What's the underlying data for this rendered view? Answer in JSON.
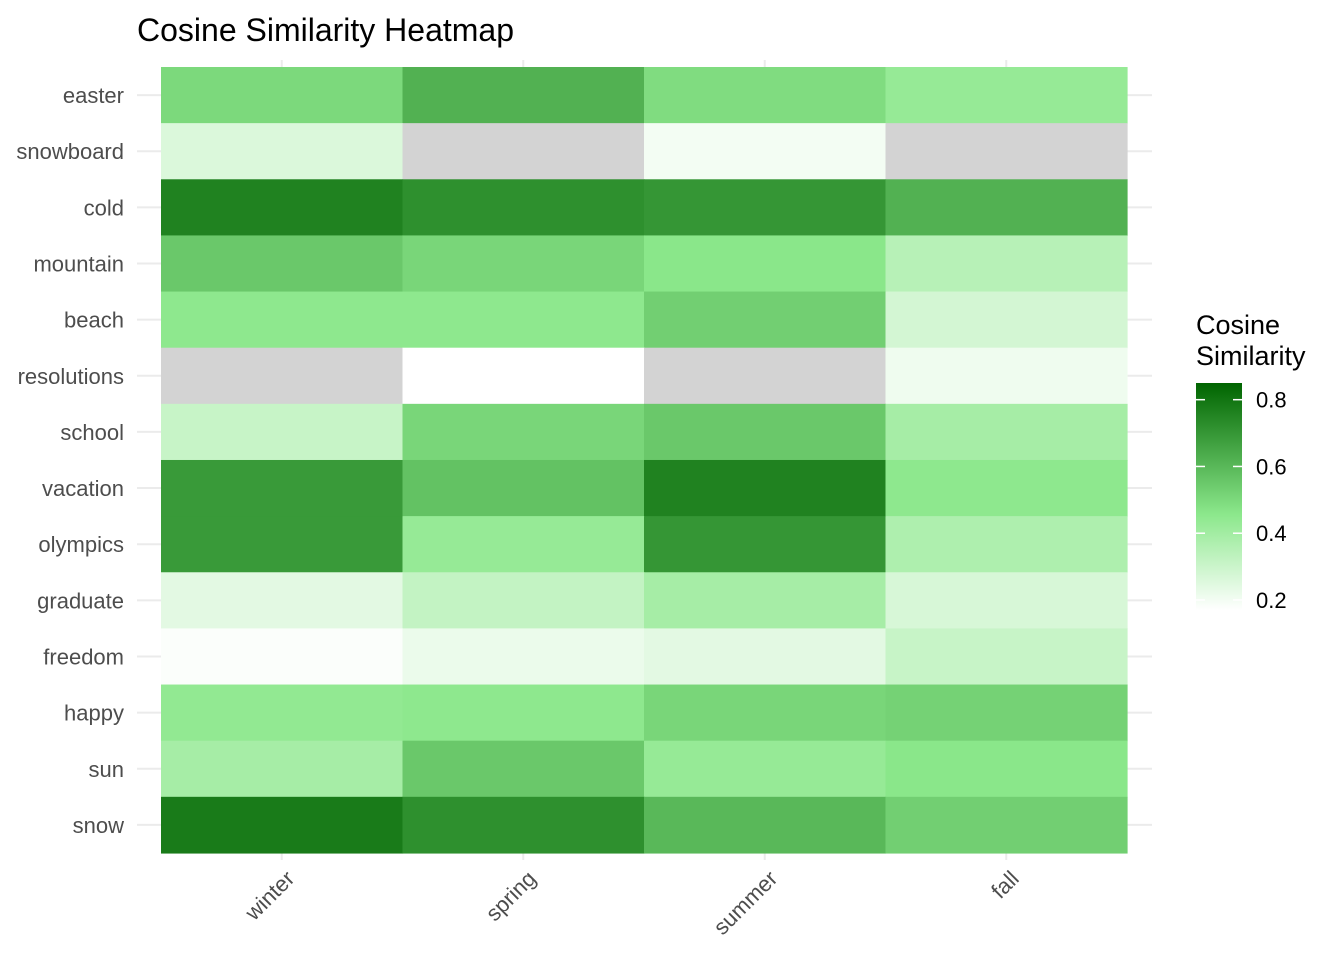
{
  "chart_data": {
    "type": "heatmap",
    "title": "Cosine Similarity Heatmap",
    "xlabel": "",
    "ylabel": "",
    "x_categories": [
      "winter",
      "spring",
      "summer",
      "fall"
    ],
    "y_categories": [
      "easter",
      "snowboard",
      "cold",
      "mountain",
      "beach",
      "resolutions",
      "school",
      "vacation",
      "olympics",
      "graduate",
      "freedom",
      "happy",
      "sun",
      "snow"
    ],
    "values": [
      [
        0.5,
        0.62,
        0.49,
        0.43
      ],
      [
        0.26,
        null,
        0.2,
        null
      ],
      [
        0.76,
        0.72,
        0.7,
        0.62
      ],
      [
        0.55,
        0.51,
        0.46,
        0.35
      ],
      [
        0.45,
        0.45,
        0.53,
        0.28
      ],
      [
        null,
        0.17,
        null,
        0.21
      ],
      [
        0.31,
        0.51,
        0.55,
        0.39
      ],
      [
        0.69,
        0.57,
        0.76,
        0.45
      ],
      [
        0.69,
        0.43,
        0.7,
        0.37
      ],
      [
        0.24,
        0.32,
        0.39,
        0.27
      ],
      [
        0.18,
        0.22,
        0.24,
        0.31
      ],
      [
        0.44,
        0.45,
        0.51,
        0.52
      ],
      [
        0.39,
        0.55,
        0.43,
        0.46
      ],
      [
        0.78,
        0.72,
        0.6,
        0.53
      ]
    ],
    "na_color": "#d3d3d3",
    "color_scale": {
      "low": "#ffffff",
      "high": "#006400",
      "domain": [
        0.17,
        0.85
      ]
    },
    "legend": {
      "title_lines": [
        "Cosine",
        "Similarity"
      ],
      "ticks": [
        "0.8",
        "0.6",
        "0.4",
        "0.2"
      ],
      "tick_values": [
        0.8,
        0.6,
        0.4,
        0.2
      ],
      "position": "right"
    },
    "grid": true
  }
}
